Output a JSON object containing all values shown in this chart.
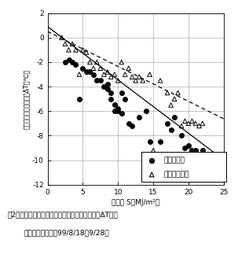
{
  "title": "",
  "xlabel": "日射量 S（MJ/m²）",
  "ylabel": "対照区培地との温度差ΔT（℃）",
  "xlim": [
    0,
    25
  ],
  "ylim": [
    -12,
    2
  ],
  "xticks": [
    0,
    5,
    10,
    15,
    20,
    25
  ],
  "yticks": [
    -12,
    -10,
    -8,
    -6,
    -4,
    -2,
    0,
    2
  ],
  "caption_line1": "図2　培地底部における最高気温時の冷却効果（ΔT）と",
  "caption_line2": "日射量との関係（99/8/18－9/28）",
  "legend_filled": "気化冷却区",
  "legend_triangle": "パイプ冷却区",
  "filled_dots": [
    [
      2.5,
      -2.0
    ],
    [
      3.0,
      -1.8
    ],
    [
      3.5,
      -2.0
    ],
    [
      4.0,
      -2.2
    ],
    [
      4.5,
      -5.0
    ],
    [
      5.0,
      -2.5
    ],
    [
      5.5,
      -2.8
    ],
    [
      6.0,
      -2.8
    ],
    [
      6.5,
      -3.0
    ],
    [
      7.0,
      -3.5
    ],
    [
      7.5,
      -3.5
    ],
    [
      8.0,
      -4.0
    ],
    [
      8.5,
      -3.8
    ],
    [
      8.5,
      -4.2
    ],
    [
      9.0,
      -4.5
    ],
    [
      9.0,
      -5.0
    ],
    [
      9.5,
      -5.5
    ],
    [
      9.5,
      -6.0
    ],
    [
      10.0,
      -5.8
    ],
    [
      10.0,
      -6.0
    ],
    [
      10.5,
      -6.2
    ],
    [
      10.5,
      -4.5
    ],
    [
      11.0,
      -5.0
    ],
    [
      11.5,
      -7.0
    ],
    [
      12.0,
      -7.2
    ],
    [
      13.0,
      -6.5
    ],
    [
      14.0,
      -6.0
    ],
    [
      14.5,
      -8.5
    ],
    [
      15.0,
      -11.0
    ],
    [
      16.0,
      -8.5
    ],
    [
      17.0,
      -7.0
    ],
    [
      17.5,
      -7.5
    ],
    [
      18.0,
      -6.5
    ],
    [
      19.0,
      -8.0
    ],
    [
      19.5,
      -9.0
    ],
    [
      20.0,
      -8.8
    ],
    [
      20.5,
      -9.2
    ],
    [
      21.0,
      -9.2
    ],
    [
      21.5,
      -9.5
    ],
    [
      22.0,
      -9.2
    ]
  ],
  "open_triangles": [
    [
      2.0,
      0.0
    ],
    [
      2.5,
      -0.5
    ],
    [
      3.0,
      -1.0
    ],
    [
      3.5,
      -0.5
    ],
    [
      4.0,
      -1.0
    ],
    [
      4.5,
      -3.0
    ],
    [
      5.0,
      -1.0
    ],
    [
      5.5,
      -1.2
    ],
    [
      6.0,
      -2.0
    ],
    [
      6.5,
      -2.5
    ],
    [
      7.0,
      -2.0
    ],
    [
      7.5,
      -2.5
    ],
    [
      8.0,
      -3.0
    ],
    [
      8.5,
      -2.8
    ],
    [
      9.0,
      -3.2
    ],
    [
      9.5,
      -3.0
    ],
    [
      10.0,
      -3.5
    ],
    [
      10.5,
      -2.0
    ],
    [
      11.0,
      -3.0
    ],
    [
      11.5,
      -2.5
    ],
    [
      12.0,
      -3.2
    ],
    [
      12.5,
      -3.5
    ],
    [
      13.0,
      -3.2
    ],
    [
      13.5,
      -3.5
    ],
    [
      14.5,
      -3.0
    ],
    [
      15.0,
      -9.2
    ],
    [
      16.0,
      -3.5
    ],
    [
      17.0,
      -4.5
    ],
    [
      17.5,
      -5.5
    ],
    [
      18.0,
      -5.0
    ],
    [
      18.5,
      -4.5
    ],
    [
      19.0,
      -7.2
    ],
    [
      19.5,
      -6.8
    ],
    [
      20.0,
      -7.0
    ],
    [
      20.5,
      -6.8
    ],
    [
      21.0,
      -7.0
    ],
    [
      21.5,
      -7.2
    ],
    [
      22.0,
      -7.0
    ]
  ],
  "reg_filled_slope": -0.435,
  "reg_filled_intercept": 0.9,
  "reg_triangle_slope": -0.285,
  "reg_triangle_intercept": 0.5,
  "background_color": "#ffffff",
  "grid_color": "#999999",
  "dot_color": "#000000",
  "triangle_edge_color": "#000000"
}
